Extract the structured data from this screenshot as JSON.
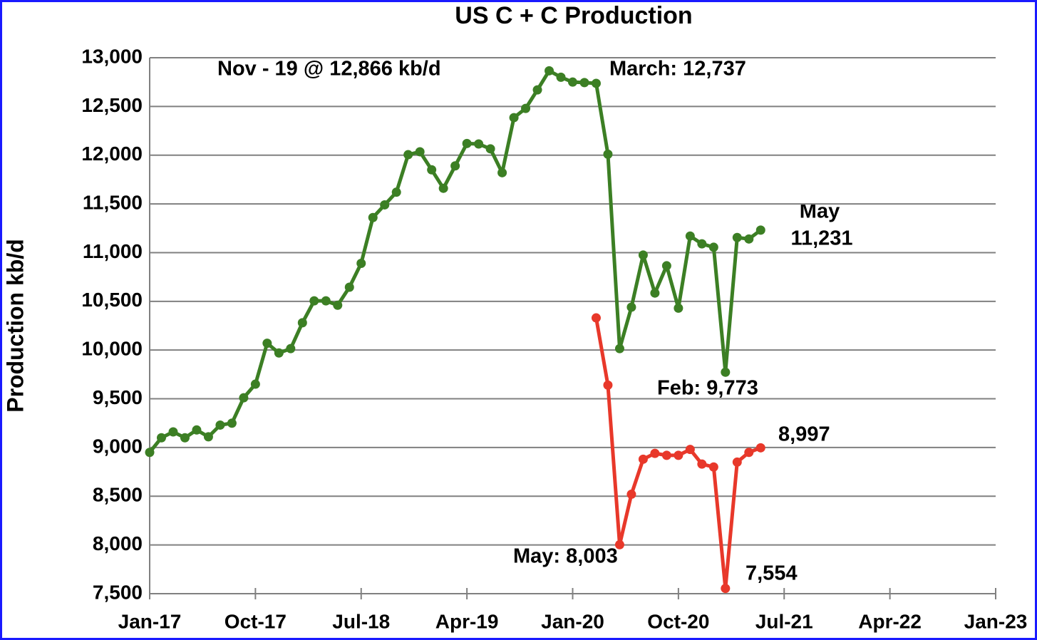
{
  "chart_data": {
    "type": "line",
    "title": "US C + C Production",
    "y_label": "Production kb/d",
    "x": [
      "Jan-17",
      "Feb-17",
      "Mar-17",
      "Apr-17",
      "May-17",
      "Jun-17",
      "Jul-17",
      "Aug-17",
      "Sep-17",
      "Oct-17",
      "Nov-17",
      "Dec-17",
      "Jan-18",
      "Feb-18",
      "Mar-18",
      "Apr-18",
      "May-18",
      "Jun-18",
      "Jul-18",
      "Aug-18",
      "Sep-18",
      "Oct-18",
      "Nov-18",
      "Dec-18",
      "Jan-19",
      "Feb-19",
      "Mar-19",
      "Apr-19",
      "May-19",
      "Jun-19",
      "Jul-19",
      "Aug-19",
      "Sep-19",
      "Oct-19",
      "Nov-19",
      "Dec-19",
      "Jan-20",
      "Feb-20",
      "Mar-20",
      "Apr-20",
      "May-20",
      "Jun-20",
      "Jul-20",
      "Aug-20",
      "Sep-20",
      "Oct-20",
      "Nov-20",
      "Dec-20",
      "Jan-21",
      "Feb-21",
      "Mar-21",
      "Apr-21",
      "May-21"
    ],
    "series": [
      {
        "color": "#3c7f24",
        "values": [
          8950,
          9100,
          9160,
          9100,
          9180,
          9110,
          9230,
          9250,
          9510,
          9650,
          10070,
          9970,
          10015,
          10280,
          10505,
          10505,
          10460,
          10645,
          10890,
          11360,
          11490,
          11620,
          12005,
          12035,
          11850,
          11660,
          11890,
          12120,
          12115,
          12065,
          11820,
          12385,
          12480,
          12670,
          12866,
          12800,
          12750,
          12745,
          12737,
          12010,
          10015,
          10440,
          10975,
          10585,
          10865,
          10430,
          11170,
          11090,
          11055,
          9773,
          11155,
          11140,
          11231
        ]
      },
      {
        "color": "#e8382a",
        "values": [
          null,
          null,
          null,
          null,
          null,
          null,
          null,
          null,
          null,
          null,
          null,
          null,
          null,
          null,
          null,
          null,
          null,
          null,
          null,
          null,
          null,
          null,
          null,
          null,
          null,
          null,
          null,
          null,
          null,
          null,
          null,
          null,
          null,
          null,
          null,
          null,
          null,
          null,
          10330,
          9640,
          8003,
          8520,
          8880,
          8940,
          8920,
          8920,
          8980,
          8830,
          8800,
          7554,
          8850,
          8950,
          8997
        ]
      }
    ],
    "xlim": [
      "Jan-17",
      "Jan-23"
    ],
    "xticks": [
      "Jan-17",
      "Oct-17",
      "Jul-18",
      "Apr-19",
      "Jan-20",
      "Oct-20",
      "Jul-21",
      "Apr-22",
      "Jan-23"
    ],
    "ylim": [
      7500,
      13000
    ],
    "yticks": [
      {
        "value": 7500,
        "label": "7,500"
      },
      {
        "value": 8000,
        "label": "8,000"
      },
      {
        "value": 8500,
        "label": "8,500"
      },
      {
        "value": 9000,
        "label": "9,000"
      },
      {
        "value": 9500,
        "label": "9,500"
      },
      {
        "value": 10000,
        "label": "10,000"
      },
      {
        "value": 10500,
        "label": "10,500"
      },
      {
        "value": 11000,
        "label": "11,000"
      },
      {
        "value": 11500,
        "label": "11,500"
      },
      {
        "value": 12000,
        "label": "12,000"
      },
      {
        "value": 12500,
        "label": "12,500"
      },
      {
        "value": 13000,
        "label": "13,000"
      }
    ],
    "grid": true,
    "annotations": [
      "Nov - 19 @ 12,866 kb/d",
      "March: 12,737",
      "May",
      "11,231",
      "Feb: 9,773",
      "8,997",
      "May: 8,003",
      "7,554"
    ]
  }
}
